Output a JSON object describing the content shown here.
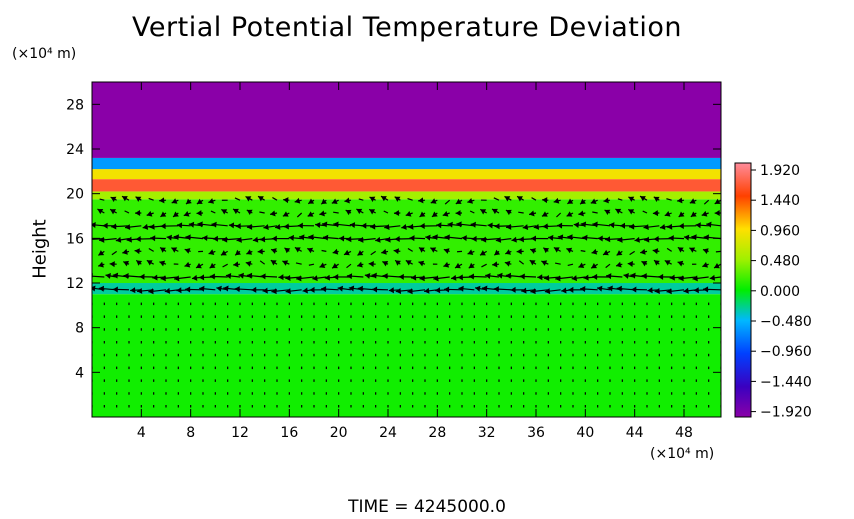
{
  "chart_data": {
    "type": "heatmap",
    "title": "Vertial Potential Temperature Deviation",
    "xlabel": "",
    "ylabel": "Height",
    "x_unit": "(×10⁴ m)",
    "y_unit": "(×10⁴ m)",
    "footer": "TIME = 4245000.0",
    "xlim": [
      0,
      51
    ],
    "ylim": [
      0,
      30
    ],
    "x_ticks": [
      "4",
      "8",
      "12",
      "16",
      "20",
      "24",
      "28",
      "32",
      "36",
      "40",
      "44",
      "48"
    ],
    "x_tick_values": [
      4,
      8,
      12,
      16,
      20,
      24,
      28,
      32,
      36,
      40,
      44,
      48
    ],
    "y_ticks": [
      "4",
      "8",
      "12",
      "16",
      "20",
      "24",
      "28"
    ],
    "y_tick_values": [
      4,
      8,
      12,
      16,
      20,
      24,
      28
    ],
    "colorbar": {
      "range": [
        -1.92,
        1.92
      ],
      "labels": [
        "1.920",
        "1.440",
        "0.960",
        "0.480",
        "0.000",
        "−0.480",
        "−0.960",
        "−1.440",
        "−1.920"
      ]
    },
    "field_layers": [
      {
        "y_from": 0,
        "y_to": 11,
        "value": 0.05
      },
      {
        "y_from": 11,
        "y_to": 12,
        "value": -0.3
      },
      {
        "y_from": 12,
        "y_to": 19.5,
        "value": 0.15
      },
      {
        "y_from": 19.5,
        "y_to": 20.2,
        "value": 0.5
      },
      {
        "y_from": 20.2,
        "y_to": 21.3,
        "value": 1.6
      },
      {
        "y_from": 21.3,
        "y_to": 22.2,
        "value": 0.9
      },
      {
        "y_from": 22.2,
        "y_to": 23.2,
        "value": -0.6
      },
      {
        "y_from": 23.2,
        "y_to": 30,
        "value": -1.92
      }
    ]
  }
}
